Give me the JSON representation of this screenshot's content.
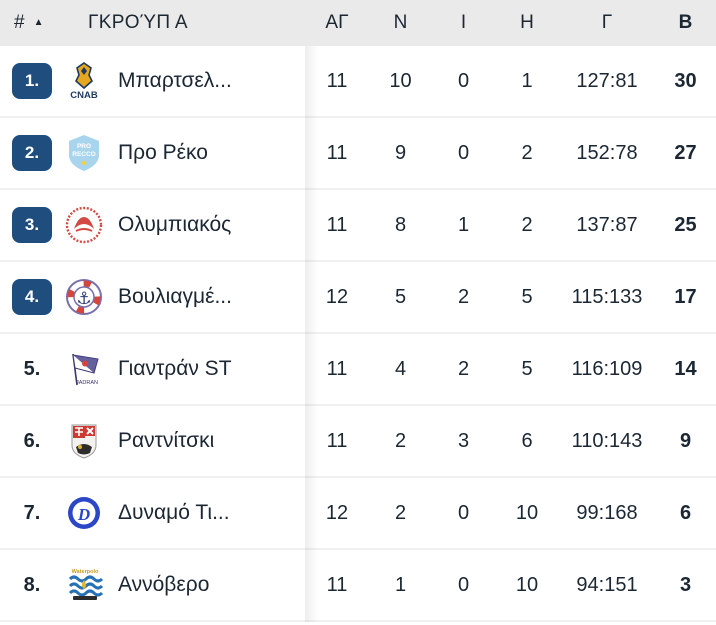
{
  "table": {
    "header": {
      "rank_label": "#",
      "sort_icon": "▲",
      "group_label": "ΓΚΡΟΎΠ Α",
      "columns": {
        "played": "ΑΓ",
        "wins": "Ν",
        "draws": "Ι",
        "losses": "Η",
        "goals": "Γ",
        "points": "Β"
      }
    },
    "rows": [
      {
        "rank": "1.",
        "promoted": true,
        "team": "Μπαρτσελ...",
        "logo": "cnab",
        "logo_label": "CNAB",
        "played": "11",
        "wins": "10",
        "draws": "0",
        "losses": "1",
        "goals": "127:81",
        "points": "30"
      },
      {
        "rank": "2.",
        "promoted": true,
        "team": "Προ Ρέκο",
        "logo": "pro-recco",
        "logo_label": "PRO RECCO",
        "played": "11",
        "wins": "9",
        "draws": "0",
        "losses": "2",
        "goals": "152:78",
        "points": "27"
      },
      {
        "rank": "3.",
        "promoted": true,
        "team": "Ολυμπιακός",
        "logo": "olympiacos",
        "logo_label": "",
        "played": "11",
        "wins": "8",
        "draws": "1",
        "losses": "2",
        "goals": "137:87",
        "points": "25"
      },
      {
        "rank": "4.",
        "promoted": true,
        "team": "Βουλιαγμέ...",
        "logo": "vouliagmeni",
        "logo_label": "",
        "played": "12",
        "wins": "5",
        "draws": "2",
        "losses": "5",
        "goals": "115:133",
        "points": "17"
      },
      {
        "rank": "5.",
        "promoted": false,
        "team": "Γιαντράν ST",
        "logo": "jadran",
        "logo_label": "JADRAN",
        "played": "11",
        "wins": "4",
        "draws": "2",
        "losses": "5",
        "goals": "116:109",
        "points": "14"
      },
      {
        "rank": "6.",
        "promoted": false,
        "team": "Ραντνίτσκι",
        "logo": "radnicki",
        "logo_label": "",
        "played": "11",
        "wins": "2",
        "draws": "3",
        "losses": "6",
        "goals": "110:143",
        "points": "9"
      },
      {
        "rank": "7.",
        "promoted": false,
        "team": "Δυναμό Τι...",
        "logo": "dynamo",
        "logo_label": "D",
        "played": "12",
        "wins": "2",
        "draws": "0",
        "losses": "10",
        "goals": "99:168",
        "points": "6"
      },
      {
        "rank": "8.",
        "promoted": false,
        "team": "Αννόβερο",
        "logo": "hannover",
        "logo_label": "Waterpolo",
        "played": "11",
        "wins": "1",
        "draws": "0",
        "losses": "10",
        "goals": "94:151",
        "points": "3"
      }
    ]
  },
  "colors": {
    "header_bg": "#eaeaea",
    "text": "#1b2733",
    "promoted_badge": "#1e4d7e",
    "row_separator": "#f0f0f0"
  }
}
